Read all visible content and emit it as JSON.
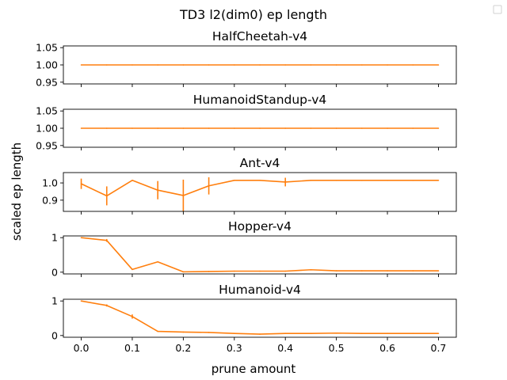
{
  "figure": {
    "suptitle": "TD3 l2(dim0) ep length",
    "xlabel": "prune amount",
    "ylabel": "scaled ep length",
    "legend_icon": "empty-legend-box-icon"
  },
  "colors": {
    "main": "#ff7f0e",
    "secondary": "#1f77b4"
  },
  "chart_data": [
    {
      "type": "line",
      "title": "HalfCheetah-v4",
      "x": [
        0.0,
        0.05,
        0.1,
        0.15,
        0.2,
        0.25,
        0.3,
        0.35,
        0.4,
        0.45,
        0.5,
        0.55,
        0.6,
        0.65,
        0.7
      ],
      "series": [
        {
          "values": [
            1,
            1,
            1,
            1,
            1,
            1,
            1,
            1,
            1,
            1,
            1,
            1,
            1,
            1,
            1
          ],
          "err": [
            0,
            0,
            0,
            0,
            0,
            0,
            0,
            0,
            0,
            0,
            0,
            0,
            0,
            0,
            0
          ]
        }
      ],
      "xlim": [
        -0.035,
        0.735
      ],
      "ylim": [
        0.945,
        1.055
      ],
      "yticks": [
        0.95,
        1.0,
        1.05
      ],
      "ytick_labels": [
        "0.95",
        "1.00",
        "1.05"
      ],
      "xticks": [
        0.0,
        0.1,
        0.2,
        0.3,
        0.4,
        0.5,
        0.6,
        0.7
      ],
      "show_xtick_labels": false
    },
    {
      "type": "line",
      "title": "HumanoidStandup-v4",
      "x": [
        0.0,
        0.05,
        0.1,
        0.15,
        0.2,
        0.25,
        0.3,
        0.35,
        0.4,
        0.45,
        0.5,
        0.55,
        0.6,
        0.65,
        0.7
      ],
      "series": [
        {
          "values": [
            1,
            1,
            1,
            1,
            1,
            1,
            1,
            1,
            1,
            1,
            1,
            1,
            1,
            1,
            1
          ],
          "err": [
            0,
            0,
            0,
            0,
            0,
            0,
            0,
            0,
            0,
            0,
            0,
            0,
            0,
            0,
            0
          ]
        }
      ],
      "xlim": [
        -0.035,
        0.735
      ],
      "ylim": [
        0.945,
        1.055
      ],
      "yticks": [
        0.95,
        1.0,
        1.05
      ],
      "ytick_labels": [
        "0.95",
        "1.00",
        "1.05"
      ],
      "xticks": [
        0.0,
        0.1,
        0.2,
        0.3,
        0.4,
        0.5,
        0.6,
        0.7
      ],
      "show_xtick_labels": false
    },
    {
      "type": "line",
      "title": "Ant-v4",
      "x": [
        0.0,
        0.05,
        0.1,
        0.15,
        0.2,
        0.25,
        0.3,
        0.35,
        0.4,
        0.45,
        0.5,
        0.55,
        0.6,
        0.65,
        0.7
      ],
      "series": [
        {
          "values": [
            0.995,
            0.925,
            1.015,
            0.958,
            0.927,
            0.983,
            1.015,
            1.015,
            1.005,
            1.015,
            1.015,
            1.015,
            1.015,
            1.015,
            1.015
          ],
          "err": [
            0.03,
            0.055,
            0,
            0.053,
            0.092,
            0.05,
            0,
            0,
            0.025,
            0,
            0,
            0,
            0,
            0,
            0
          ]
        }
      ],
      "xlim": [
        -0.035,
        0.735
      ],
      "ylim": [
        0.835,
        1.06
      ],
      "yticks": [
        0.9,
        1.0
      ],
      "ytick_labels": [
        "0.9",
        "1.0"
      ],
      "xticks": [
        0.0,
        0.1,
        0.2,
        0.3,
        0.4,
        0.5,
        0.6,
        0.7
      ],
      "show_xtick_labels": false
    },
    {
      "type": "line",
      "title": "Hopper-v4",
      "x": [
        0.0,
        0.05,
        0.1,
        0.15,
        0.2,
        0.25,
        0.3,
        0.35,
        0.4,
        0.45,
        0.5,
        0.55,
        0.6,
        0.65,
        0.7
      ],
      "series": [
        {
          "values": [
            1.0,
            0.92,
            0.08,
            0.3,
            0.01,
            0.02,
            0.03,
            0.03,
            0.03,
            0.07,
            0.04,
            0.04,
            0.04,
            0.04,
            0.04
          ],
          "err": [
            0,
            0.04,
            0,
            0,
            0,
            0,
            0,
            0,
            0,
            0,
            0,
            0,
            0,
            0,
            0
          ]
        }
      ],
      "xlim": [
        -0.035,
        0.735
      ],
      "ylim": [
        -0.05,
        1.05
      ],
      "yticks": [
        0,
        1
      ],
      "ytick_labels": [
        "0",
        "1"
      ],
      "xticks": [
        0.0,
        0.1,
        0.2,
        0.3,
        0.4,
        0.5,
        0.6,
        0.7
      ],
      "show_xtick_labels": false
    },
    {
      "type": "line",
      "title": "Humanoid-v4",
      "x": [
        0.0,
        0.05,
        0.1,
        0.15,
        0.2,
        0.25,
        0.3,
        0.35,
        0.4,
        0.45,
        0.5,
        0.55,
        0.6,
        0.65,
        0.7
      ],
      "series": [
        {
          "values": [
            1.0,
            0.87,
            0.55,
            0.12,
            0.1,
            0.09,
            0.06,
            0.04,
            0.06,
            0.06,
            0.07,
            0.06,
            0.06,
            0.06,
            0.06
          ],
          "err": [
            0,
            0.03,
            0.06,
            0,
            0,
            0,
            0,
            0,
            0,
            0,
            0,
            0,
            0,
            0,
            0
          ]
        }
      ],
      "xlim": [
        -0.035,
        0.735
      ],
      "ylim": [
        -0.05,
        1.05
      ],
      "yticks": [
        0,
        1
      ],
      "ytick_labels": [
        "0",
        "1"
      ],
      "xticks": [
        0.0,
        0.1,
        0.2,
        0.3,
        0.4,
        0.5,
        0.6,
        0.7
      ],
      "xtick_labels": [
        "0.0",
        "0.1",
        "0.2",
        "0.3",
        "0.4",
        "0.5",
        "0.6",
        "0.7"
      ],
      "show_xtick_labels": true
    }
  ]
}
